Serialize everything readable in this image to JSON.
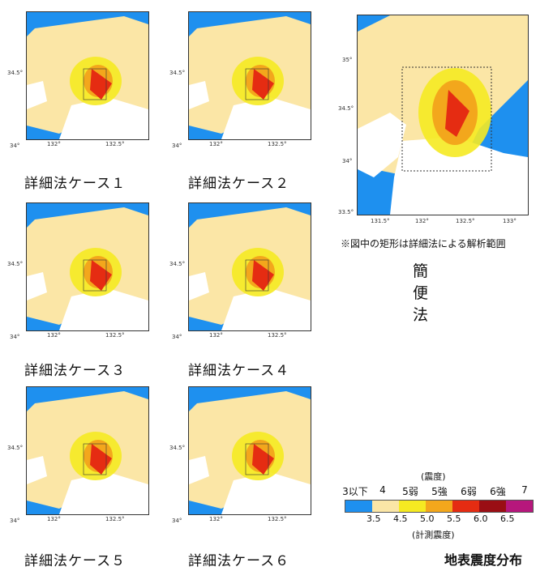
{
  "cases": [
    {
      "caption": "詳細法ケース１",
      "lon_ticks": [
        "132°",
        "132.5°"
      ],
      "lat_ticks": [
        "34.5°",
        "34°"
      ]
    },
    {
      "caption": "詳細法ケース２",
      "lon_ticks": [
        "132°",
        "132.5°"
      ],
      "lat_ticks": [
        "34.5°",
        "34°"
      ]
    },
    {
      "caption": "詳細法ケース３",
      "lon_ticks": [
        "132°",
        "132.5°"
      ],
      "lat_ticks": [
        "34.5°",
        "34°"
      ]
    },
    {
      "caption": "詳細法ケース４",
      "lon_ticks": [
        "132°",
        "132.5°"
      ],
      "lat_ticks": [
        "34.5°",
        "34°"
      ]
    },
    {
      "caption": "詳細法ケース５",
      "lon_ticks": [
        "132°",
        "132.5°"
      ],
      "lat_ticks": [
        "34.5°",
        "34°"
      ]
    },
    {
      "caption": "詳細法ケース６",
      "lon_ticks": [
        "132°",
        "132.5°"
      ],
      "lat_ticks": [
        "34.5°",
        "34°"
      ]
    }
  ],
  "simple": {
    "lon_ticks": [
      "131.5°",
      "132°",
      "132.5°",
      "133°"
    ],
    "lat_ticks": [
      "35°",
      "34.5°",
      "34°",
      "33.5°"
    ],
    "note": "※図中の矩形は詳細法による解析範囲",
    "label": "簡便法"
  },
  "legend": {
    "intensity_title": "(震度)",
    "intensity_labels": [
      "3以下",
      "4",
      "5弱",
      "5強",
      "6弱",
      "6強",
      "7"
    ],
    "measured_values": [
      "3.5",
      "4.5",
      "5.0",
      "5.5",
      "6.0",
      "6.5"
    ],
    "measured_title": "(計測震度)",
    "colors": [
      "#1e90ef",
      "#fbe6a6",
      "#f5ea22",
      "#f3a71c",
      "#e52c12",
      "#9a0e14",
      "#b6177c"
    ]
  },
  "title": "地表震度分布"
}
